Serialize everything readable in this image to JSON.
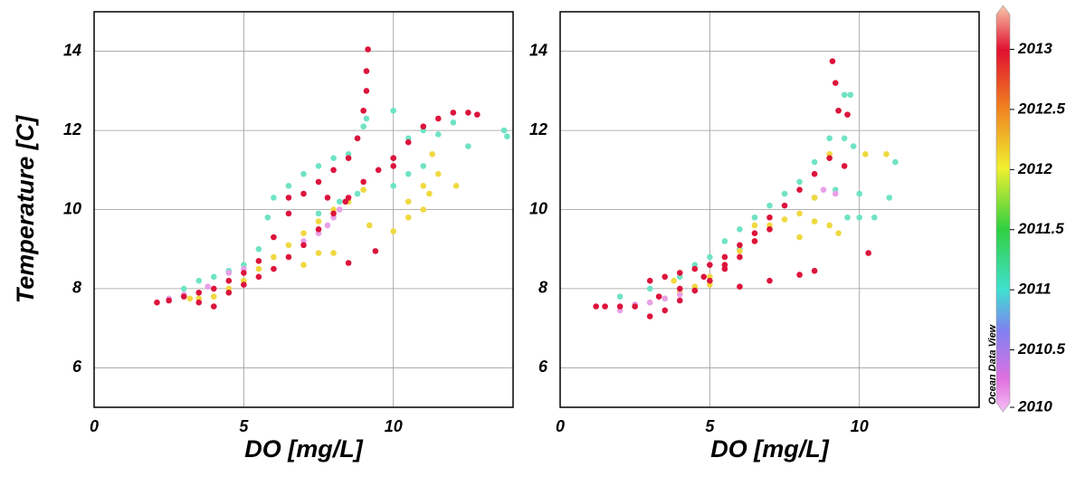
{
  "chart_data": [
    {
      "type": "scatter",
      "xlabel": "DO [mg/L]",
      "ylabel": "Temperature [C]",
      "xlim": [
        0,
        14
      ],
      "ylim": [
        5,
        15
      ],
      "xticks": [
        0,
        5,
        10
      ],
      "yticks": [
        6,
        8,
        10,
        12,
        14
      ],
      "grid": true,
      "series": [
        {
          "color": "#6fe3c4",
          "x": [
            3,
            3.5,
            4,
            4.5,
            5,
            5.5,
            5.8,
            6,
            6.5,
            7,
            7.5,
            8,
            8.5,
            8.8,
            9,
            9.1,
            7.5,
            8.2,
            8.8,
            10,
            10,
            10.5,
            11,
            11.5,
            12,
            12.5,
            13.7,
            13.8,
            10,
            10.5,
            11
          ],
          "values": [
            8.0,
            8.2,
            8.3,
            8.45,
            8.6,
            9.0,
            9.8,
            10.3,
            10.6,
            10.9,
            11.1,
            11.3,
            11.4,
            11.8,
            12.1,
            12.3,
            9.9,
            10.2,
            10.4,
            11.3,
            12.5,
            11.8,
            12.0,
            11.9,
            12.2,
            11.6,
            12.0,
            11.85,
            10.6,
            10.9,
            11.1
          ]
        },
        {
          "color": "#f0d840",
          "x": [
            3.2,
            3.5,
            4,
            4.5,
            5,
            5.5,
            6,
            6.5,
            7,
            7.5,
            8,
            8.5,
            9,
            7,
            7.5,
            8,
            9.2,
            10,
            10.5,
            11,
            11.2,
            10.5,
            11,
            11.5,
            11.3,
            12.1
          ],
          "values": [
            7.75,
            7.75,
            7.8,
            8.0,
            8.2,
            8.5,
            8.8,
            9.1,
            9.4,
            9.7,
            10.0,
            10.2,
            10.5,
            8.6,
            8.9,
            8.9,
            9.6,
            9.45,
            9.8,
            10.0,
            10.4,
            10.2,
            10.6,
            10.9,
            11.4,
            10.6
          ]
        },
        {
          "color": "#e8a0e8",
          "x": [
            2.5,
            3,
            3.8,
            4.5,
            5,
            7,
            7.5,
            7.8,
            8,
            8.2
          ],
          "values": [
            7.75,
            7.85,
            8.05,
            8.4,
            8.5,
            9.2,
            9.4,
            9.6,
            9.8,
            10.0
          ]
        },
        {
          "color": "#dc143c",
          "x": [
            2.1,
            2.5,
            3,
            3.5,
            4,
            4.5,
            5,
            5.5,
            6,
            6.5,
            7,
            7.5,
            8,
            8.5,
            8.8,
            9,
            9.1,
            9.1,
            9.15,
            3.5,
            4,
            4.5,
            5,
            5.5,
            6,
            6.5,
            7,
            7.5,
            8,
            8.5,
            9,
            9.5,
            10,
            10.5,
            11,
            11.5,
            12,
            12.5,
            12.8,
            9.4,
            8.5,
            6.5,
            7.8,
            8.4,
            10
          ],
          "values": [
            7.65,
            7.7,
            7.8,
            7.9,
            8.0,
            8.2,
            8.4,
            8.7,
            9.3,
            9.9,
            10.4,
            10.7,
            11.0,
            11.3,
            11.8,
            12.5,
            13.0,
            13.5,
            14.05,
            7.65,
            7.55,
            7.9,
            8.1,
            8.3,
            8.5,
            8.8,
            9.1,
            9.5,
            9.9,
            10.3,
            10.7,
            11.0,
            11.3,
            11.7,
            12.1,
            12.3,
            12.45,
            12.45,
            12.4,
            8.95,
            8.65,
            10.3,
            10.3,
            10.2,
            11.1
          ]
        }
      ]
    },
    {
      "type": "scatter",
      "xlabel": "DO [mg/L]",
      "xlim": [
        0,
        14
      ],
      "ylim": [
        5,
        15
      ],
      "xticks": [
        0,
        5,
        10
      ],
      "yticks": [
        6,
        8,
        10,
        12,
        14
      ],
      "grid": true,
      "series": [
        {
          "color": "#6fe3c4",
          "x": [
            2,
            3,
            4,
            5,
            5.5,
            6,
            6.5,
            7,
            7.5,
            8,
            8.5,
            9,
            9.3,
            9.5,
            9.7,
            9.5,
            9.8,
            8.5,
            9.2,
            9.6,
            10,
            10.5,
            11,
            11.2,
            10,
            4.5,
            6
          ],
          "values": [
            7.8,
            8.0,
            8.3,
            8.8,
            9.2,
            9.5,
            9.8,
            10.1,
            10.4,
            10.7,
            11.2,
            11.8,
            12.5,
            12.9,
            12.9,
            11.8,
            11.6,
            10.3,
            10.5,
            9.8,
            9.8,
            9.8,
            10.3,
            11.2,
            10.4,
            8.6,
            9.0
          ]
        },
        {
          "color": "#f0d840",
          "x": [
            3,
            3.5,
            4,
            4.5,
            5,
            5.5,
            6,
            6.5,
            7,
            7.5,
            8,
            8.5,
            9,
            9.3,
            6.5,
            7,
            8,
            8.5,
            9,
            10.2,
            10.9,
            3.8,
            5
          ],
          "values": [
            7.65,
            7.75,
            7.9,
            8.05,
            8.3,
            8.6,
            8.95,
            9.2,
            9.5,
            9.75,
            9.9,
            9.7,
            9.6,
            9.4,
            9.6,
            9.6,
            9.3,
            10.3,
            11.4,
            11.4,
            11.4,
            8.2,
            8.1
          ]
        },
        {
          "color": "#e8a0e8",
          "x": [
            2,
            2.5,
            3,
            3.5,
            4,
            8.8,
            9.2
          ],
          "values": [
            7.45,
            7.6,
            7.65,
            7.75,
            7.85,
            10.5,
            10.4
          ]
        },
        {
          "color": "#dc143c",
          "x": [
            1.2,
            1.5,
            2,
            2.5,
            3,
            3.5,
            4,
            4.5,
            5,
            5.5,
            6,
            6.5,
            7,
            7.5,
            8,
            8.5,
            9,
            9.3,
            9.2,
            9.1,
            9.6,
            3,
            3.5,
            4,
            4.5,
            5,
            5.5,
            6,
            6.5,
            7,
            3.3,
            4,
            4.8,
            5.5,
            6,
            7,
            8,
            8.5,
            10.3,
            9.5
          ],
          "values": [
            7.55,
            7.55,
            7.55,
            7.55,
            8.2,
            8.3,
            8.4,
            8.5,
            8.6,
            8.8,
            9.1,
            9.4,
            9.8,
            10.1,
            10.5,
            10.9,
            11.3,
            12.5,
            13.2,
            13.75,
            12.4,
            7.3,
            7.45,
            7.7,
            7.95,
            8.2,
            8.5,
            8.8,
            9.2,
            9.5,
            7.8,
            8.0,
            8.3,
            8.6,
            8.05,
            8.2,
            8.35,
            8.45,
            8.9,
            11.1
          ]
        }
      ]
    }
  ],
  "colorbar": {
    "zlim": [
      2010,
      2013.35
    ],
    "ticks": [
      2010,
      2010.5,
      2011,
      2011.5,
      2012,
      2012.5,
      2013
    ],
    "label": "Ocean Data View"
  }
}
